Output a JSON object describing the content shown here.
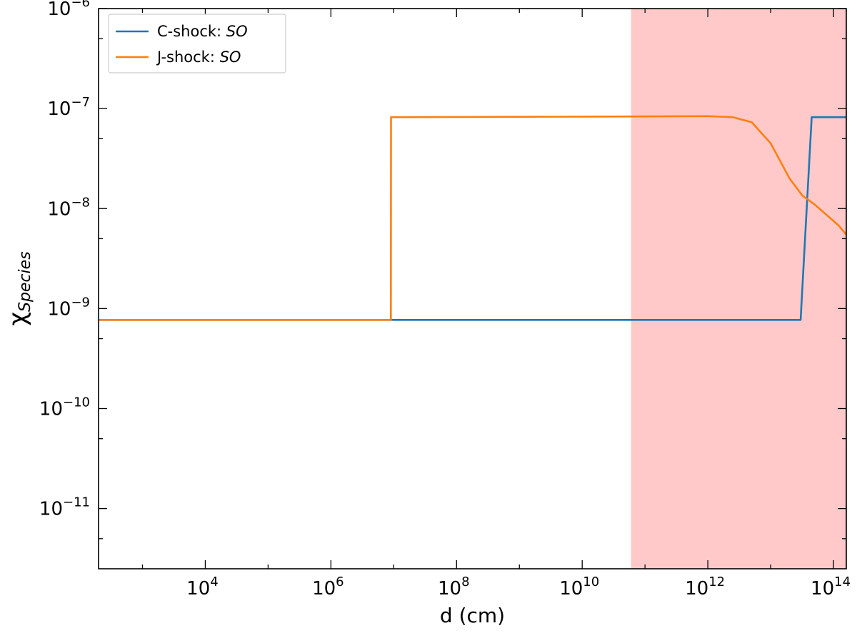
{
  "chart_data": {
    "type": "line",
    "title": "",
    "xlabel": "d (cm)",
    "ylabel": "χ",
    "ylabel_subscript": "Species",
    "xscale": "log",
    "yscale": "log",
    "xlim": [
      200,
      160000000000000.0
    ],
    "ylim": [
      2.5e-12,
      1e-06
    ],
    "x_tick_labels": [
      {
        "base": "10",
        "exp": "4",
        "value": 10000.0
      },
      {
        "base": "10",
        "exp": "6",
        "value": 1000000.0
      },
      {
        "base": "10",
        "exp": "8",
        "value": 100000000.0
      },
      {
        "base": "10",
        "exp": "10",
        "value": 10000000000.0
      },
      {
        "base": "10",
        "exp": "12",
        "value": 1000000000000.0
      },
      {
        "base": "10",
        "exp": "14",
        "value": 100000000000000.0
      }
    ],
    "y_tick_labels": [
      {
        "base": "10",
        "exp": "−11",
        "value": 1e-11
      },
      {
        "base": "10",
        "exp": "−10",
        "value": 1e-10
      },
      {
        "base": "10",
        "exp": "−9",
        "value": 1e-09
      },
      {
        "base": "10",
        "exp": "−8",
        "value": 1e-08
      },
      {
        "base": "10",
        "exp": "−7",
        "value": 1e-07
      },
      {
        "base": "10",
        "exp": "−6",
        "value": 1e-06
      }
    ],
    "shaded_region": {
      "x": [
        60000000000.0,
        160000000000000.0
      ],
      "color": "#ffc9c9"
    },
    "legend": {
      "position": "top-left",
      "entries": [
        {
          "prefix": "C-shock: ",
          "species": "SO",
          "color": "#1f77b4"
        },
        {
          "prefix": "J-shock: ",
          "species": "SO",
          "color": "#ff7f0e"
        }
      ]
    },
    "grid": false,
    "series": [
      {
        "color": "#1f77b4",
        "points": [
          [
            200,
            7.7e-10
          ],
          [
            30000000000000.0,
            7.7e-10
          ],
          [
            45000000000000.0,
            8.2e-08
          ],
          [
            160000000000000.0,
            8.2e-08
          ]
        ]
      },
      {
        "color": "#ff7f0e",
        "points": [
          [
            200,
            7.7e-10
          ],
          [
            9000000.0,
            7.7e-10
          ],
          [
            9050000.0,
            8.2e-08
          ],
          [
            10000000000.0,
            8.3e-08
          ],
          [
            1000000000000.0,
            8.4e-08
          ],
          [
            2500000000000.0,
            8.2e-08
          ],
          [
            5000000000000.0,
            7.3e-08
          ],
          [
            10000000000000.0,
            4.5e-08
          ],
          [
            20000000000000.0,
            2e-08
          ],
          [
            32000000000000.0,
            1.35e-08
          ],
          [
            50000000000000.0,
            1.1e-08
          ],
          [
            80000000000000.0,
            8.5e-09
          ],
          [
            120000000000000.0,
            6.8e-09
          ],
          [
            160000000000000.0,
            5.5e-09
          ]
        ]
      }
    ]
  }
}
